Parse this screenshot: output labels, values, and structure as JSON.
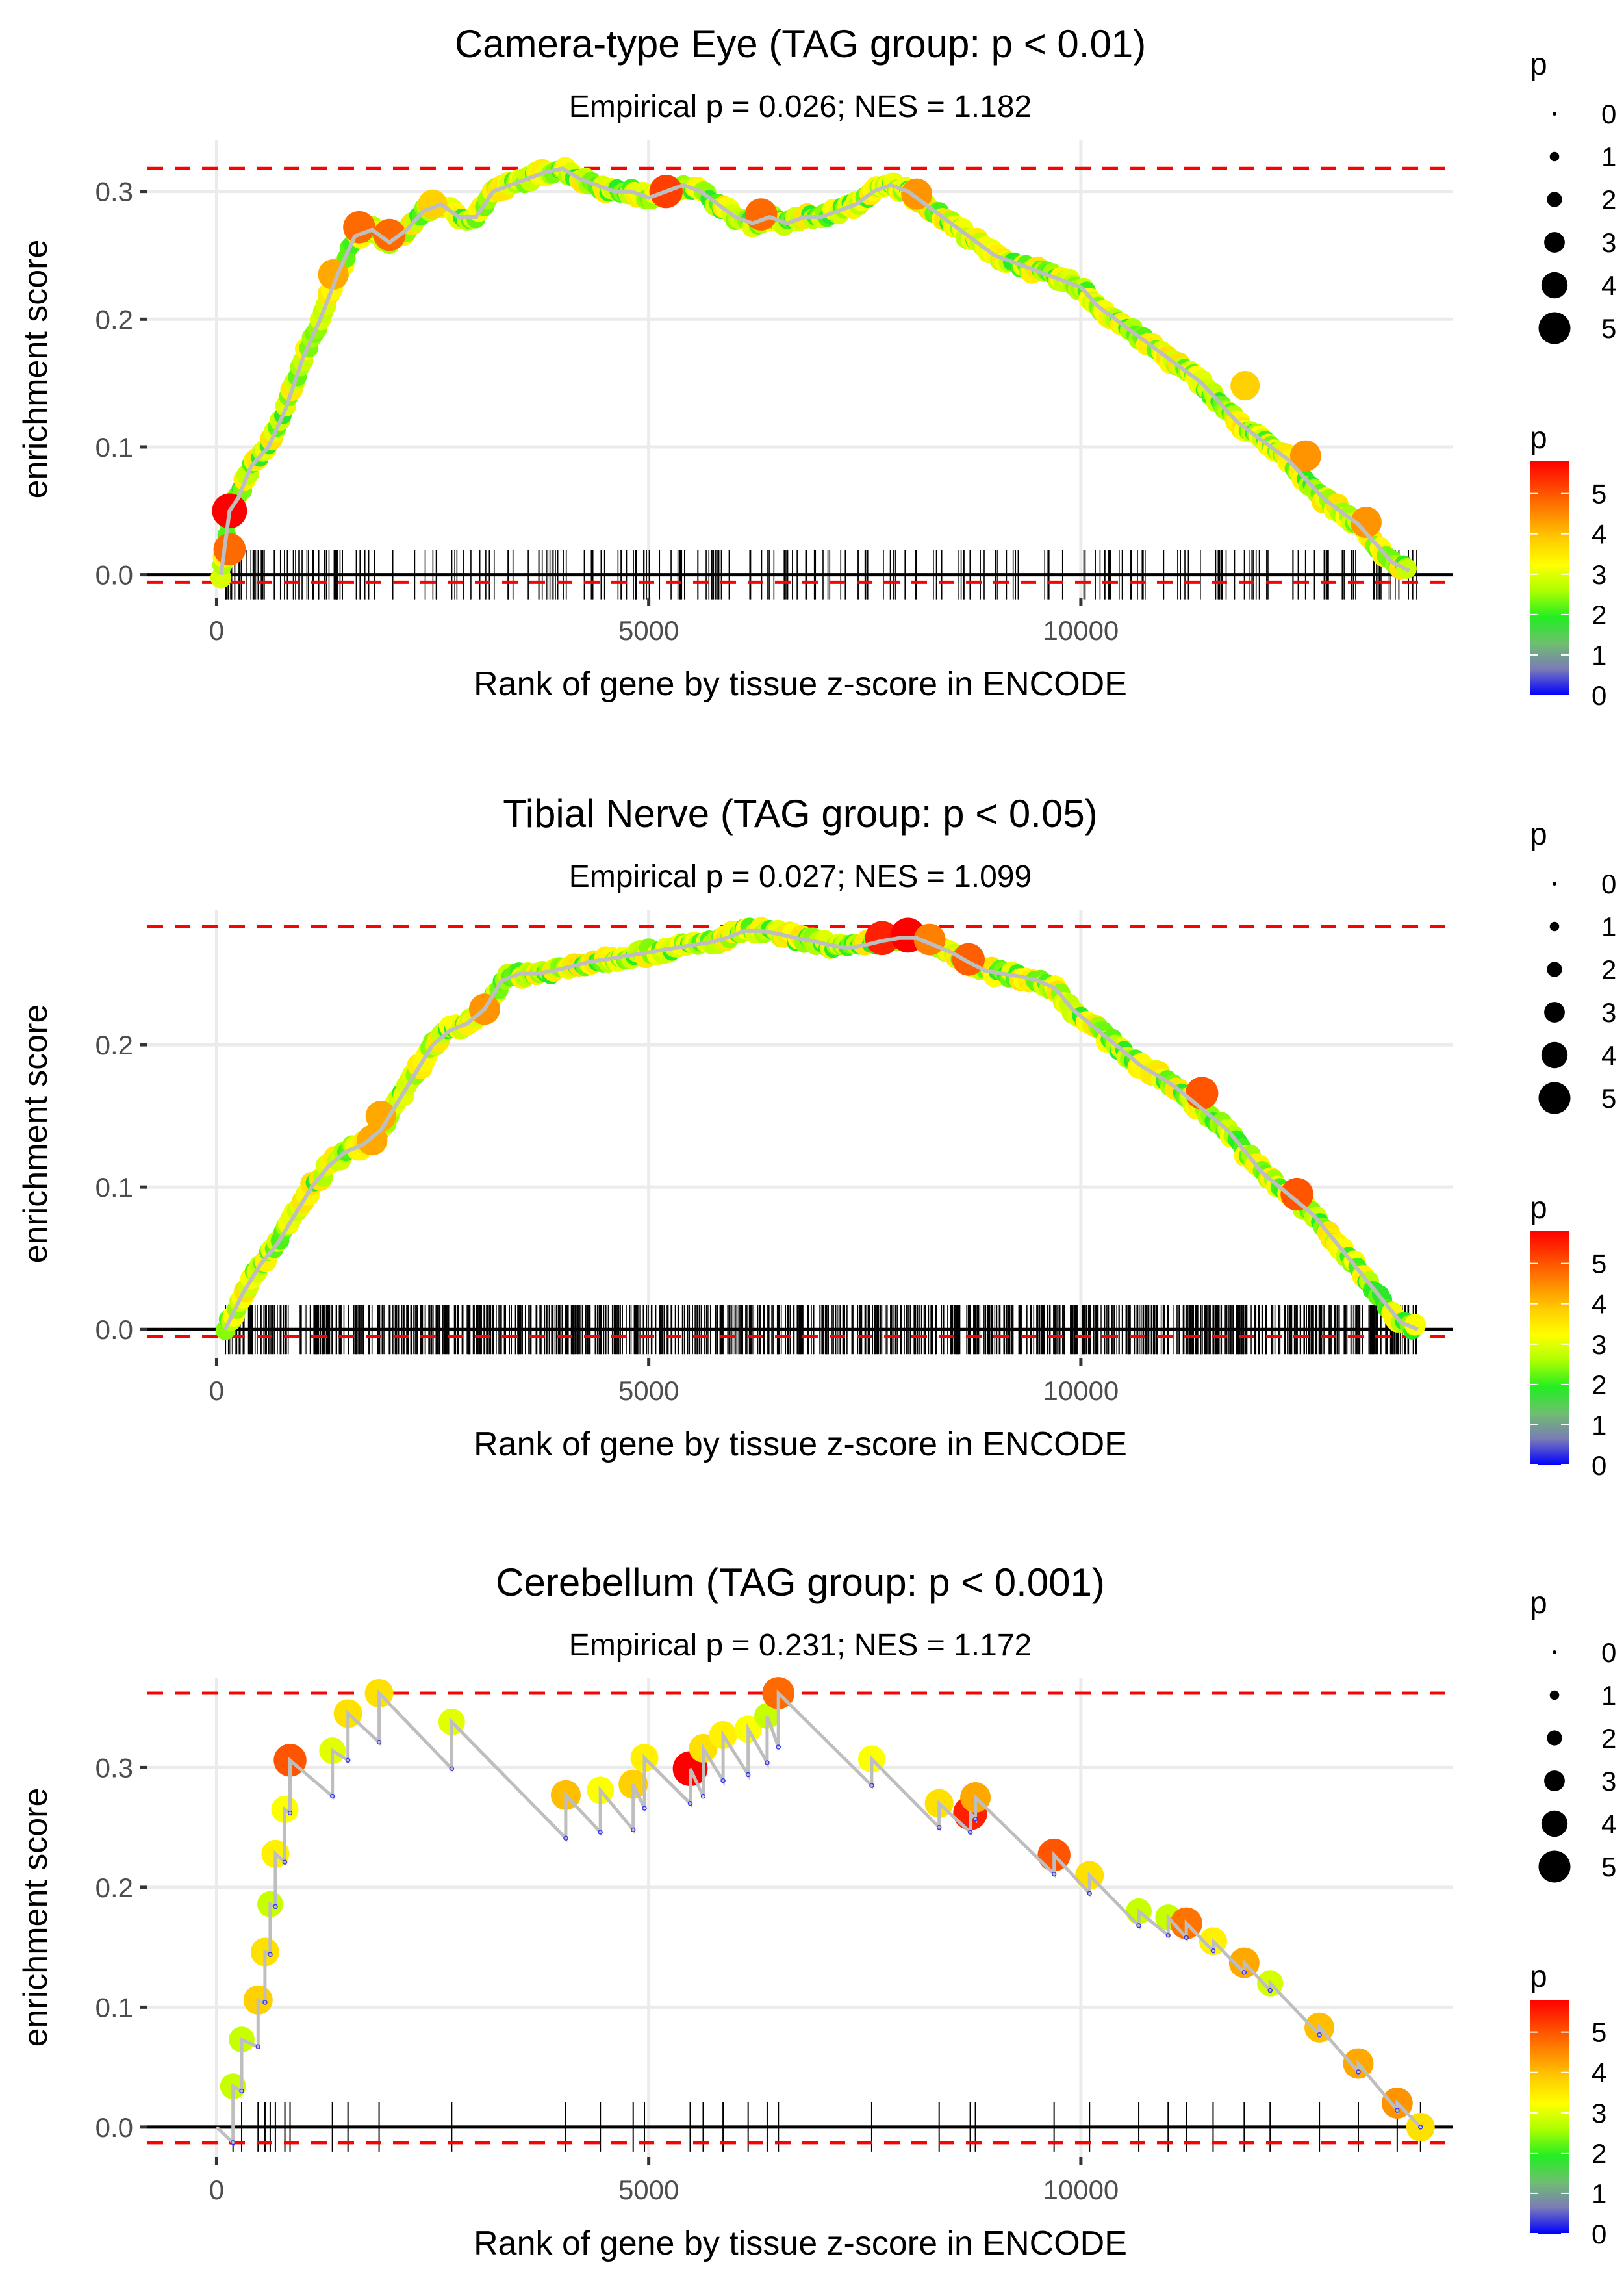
{
  "chart_data": [
    {
      "type": "line",
      "title": "Camera-type Eye (TAG group: p < 0.01)",
      "subtitle": "Empirical p = 0.026; NES = 1.182",
      "xlabel": "Rank of gene by tissue z-score in ENCODE",
      "ylabel": "enrichment score",
      "xlim": [
        -800,
        14300
      ],
      "ylim": [
        -0.018,
        0.34
      ],
      "x_ticks": [
        0,
        5000,
        10000
      ],
      "x_tick_labels": [
        "0",
        "5000",
        "10000"
      ],
      "y_ticks": [
        0.0,
        0.1,
        0.2,
        0.3
      ],
      "y_tick_labels": [
        "0.0",
        "0.1",
        "0.2",
        "0.3"
      ],
      "grid": true,
      "ref_lines": {
        "max": 0.318,
        "min": -0.006
      },
      "dense": true,
      "series": [
        {
          "name": "enrichment score",
          "x": [
            50,
            150,
            250,
            400,
            600,
            800,
            1000,
            1200,
            1400,
            1600,
            1800,
            2000,
            2200,
            2400,
            2600,
            2800,
            3000,
            3200,
            3400,
            3600,
            3800,
            4000,
            4200,
            4400,
            4600,
            4800,
            5000,
            5200,
            5400,
            5600,
            5800,
            6000,
            6200,
            6400,
            6600,
            6800,
            7000,
            7200,
            7400,
            7600,
            7800,
            8000,
            8200,
            8400,
            8600,
            8800,
            9000,
            9200,
            9400,
            9600,
            9800,
            10000,
            10200,
            10400,
            10600,
            10800,
            11000,
            11200,
            11400,
            11600,
            11800,
            12000,
            12200,
            12400,
            12600,
            12800,
            13000,
            13200,
            13400,
            13600,
            13800
          ],
          "y": [
            0.0,
            0.05,
            0.06,
            0.085,
            0.1,
            0.13,
            0.17,
            0.2,
            0.235,
            0.265,
            0.27,
            0.26,
            0.27,
            0.285,
            0.29,
            0.28,
            0.28,
            0.3,
            0.305,
            0.31,
            0.315,
            0.318,
            0.31,
            0.305,
            0.3,
            0.3,
            0.295,
            0.3,
            0.305,
            0.3,
            0.29,
            0.28,
            0.275,
            0.28,
            0.275,
            0.28,
            0.28,
            0.285,
            0.29,
            0.3,
            0.305,
            0.3,
            0.29,
            0.28,
            0.27,
            0.26,
            0.25,
            0.245,
            0.24,
            0.235,
            0.23,
            0.225,
            0.21,
            0.2,
            0.19,
            0.18,
            0.17,
            0.16,
            0.15,
            0.135,
            0.12,
            0.11,
            0.1,
            0.09,
            0.075,
            0.06,
            0.05,
            0.04,
            0.025,
            0.01,
            0.003
          ]
        }
      ],
      "highlight_points": [
        {
          "x": 150,
          "y": 0.05,
          "p": 5.8
        },
        {
          "x": 150,
          "y": 0.02,
          "p": 4.8
        },
        {
          "x": 1350,
          "y": 0.235,
          "p": 4.2
        },
        {
          "x": 1650,
          "y": 0.272,
          "p": 4.8
        },
        {
          "x": 2000,
          "y": 0.266,
          "p": 4.8
        },
        {
          "x": 2500,
          "y": 0.29,
          "p": 3.8
        },
        {
          "x": 5200,
          "y": 0.3,
          "p": 5.2
        },
        {
          "x": 6300,
          "y": 0.282,
          "p": 4.8
        },
        {
          "x": 8100,
          "y": 0.298,
          "p": 4.4
        },
        {
          "x": 11900,
          "y": 0.148,
          "p": 3.8
        },
        {
          "x": 12600,
          "y": 0.093,
          "p": 4.4
        },
        {
          "x": 13300,
          "y": 0.041,
          "p": 4.4
        }
      ],
      "rug_density": "medium"
    },
    {
      "type": "line",
      "title": "Tibial Nerve (TAG group: p < 0.05)",
      "subtitle": "Empirical p = 0.027; NES = 1.099",
      "xlabel": "Rank of gene by tissue z-score in ENCODE",
      "ylabel": "enrichment score",
      "xlim": [
        -800,
        14300
      ],
      "ylim": [
        -0.02,
        0.295
      ],
      "x_ticks": [
        0,
        5000,
        10000
      ],
      "x_tick_labels": [
        "0",
        "5000",
        "10000"
      ],
      "y_ticks": [
        0.0,
        0.1,
        0.2
      ],
      "y_tick_labels": [
        "0.0",
        "0.1",
        "0.2"
      ],
      "grid": true,
      "ref_lines": {
        "max": 0.283,
        "min": -0.005
      },
      "dense": true,
      "series": [
        {
          "name": "enrichment score",
          "x": [
            100,
            300,
            500,
            700,
            900,
            1100,
            1300,
            1500,
            1700,
            1900,
            2100,
            2300,
            2500,
            2700,
            2900,
            3100,
            3300,
            3500,
            3700,
            3900,
            4100,
            4300,
            4500,
            4700,
            4900,
            5100,
            5300,
            5500,
            5700,
            5900,
            6100,
            6300,
            6500,
            6700,
            6900,
            7100,
            7300,
            7500,
            7700,
            7900,
            8100,
            8300,
            8500,
            8700,
            8900,
            9100,
            9300,
            9500,
            9700,
            9900,
            10100,
            10300,
            10500,
            10700,
            10900,
            11100,
            11300,
            11500,
            11700,
            11900,
            12100,
            12300,
            12500,
            12700,
            12900,
            13100,
            13300,
            13500,
            13700,
            13900
          ],
          "y": [
            0.0,
            0.025,
            0.045,
            0.06,
            0.08,
            0.1,
            0.115,
            0.125,
            0.13,
            0.14,
            0.16,
            0.18,
            0.2,
            0.21,
            0.215,
            0.225,
            0.245,
            0.25,
            0.25,
            0.252,
            0.255,
            0.258,
            0.26,
            0.262,
            0.264,
            0.266,
            0.268,
            0.27,
            0.272,
            0.275,
            0.28,
            0.28,
            0.278,
            0.275,
            0.273,
            0.27,
            0.268,
            0.27,
            0.273,
            0.275,
            0.275,
            0.27,
            0.265,
            0.258,
            0.252,
            0.25,
            0.248,
            0.245,
            0.24,
            0.225,
            0.215,
            0.205,
            0.195,
            0.185,
            0.178,
            0.17,
            0.16,
            0.15,
            0.14,
            0.125,
            0.11,
            0.1,
            0.09,
            0.08,
            0.065,
            0.05,
            0.035,
            0.02,
            0.005,
            0.0
          ]
        }
      ],
      "highlight_points": [
        {
          "x": 1800,
          "y": 0.133,
          "p": 4.2
        },
        {
          "x": 1900,
          "y": 0.15,
          "p": 4.2
        },
        {
          "x": 3100,
          "y": 0.225,
          "p": 4.4
        },
        {
          "x": 7700,
          "y": 0.275,
          "p": 5.5
        },
        {
          "x": 8000,
          "y": 0.277,
          "p": 5.8
        },
        {
          "x": 8250,
          "y": 0.274,
          "p": 4.6
        },
        {
          "x": 8700,
          "y": 0.26,
          "p": 4.9
        },
        {
          "x": 11400,
          "y": 0.166,
          "p": 5.0
        },
        {
          "x": 12500,
          "y": 0.095,
          "p": 5.0
        }
      ],
      "rug_density": "high"
    },
    {
      "type": "line",
      "title": "Cerebellum (TAG group: p < 0.001)",
      "subtitle": "Empirical p = 0.231; NES = 1.172",
      "xlabel": "Rank of gene by tissue z-score in ENCODE",
      "ylabel": "enrichment score",
      "xlim": [
        -800,
        14300
      ],
      "ylim": [
        -0.025,
        0.375
      ],
      "x_ticks": [
        0,
        5000,
        10000
      ],
      "x_tick_labels": [
        "0",
        "5000",
        "10000"
      ],
      "y_ticks": [
        0.0,
        0.1,
        0.2,
        0.3
      ],
      "y_tick_labels": [
        "0.0",
        "0.1",
        "0.2",
        "0.3"
      ],
      "grid": true,
      "ref_lines": {
        "max": 0.362,
        "min": -0.013
      },
      "dense": false,
      "hits": [
        {
          "x": 190,
          "top": 0.034,
          "bottom": -0.013,
          "p": 2.8
        },
        {
          "x": 290,
          "top": 0.073,
          "bottom": 0.03,
          "p": 2.8
        },
        {
          "x": 480,
          "top": 0.106,
          "bottom": 0.067,
          "p": 3.8
        },
        {
          "x": 560,
          "top": 0.146,
          "bottom": 0.104,
          "p": 3.6
        },
        {
          "x": 620,
          "top": 0.186,
          "bottom": 0.144,
          "p": 2.8
        },
        {
          "x": 680,
          "top": 0.228,
          "bottom": 0.184,
          "p": 3.4
        },
        {
          "x": 790,
          "top": 0.265,
          "bottom": 0.221,
          "p": 3.2
        },
        {
          "x": 850,
          "top": 0.306,
          "bottom": 0.262,
          "p": 5.0
        },
        {
          "x": 1340,
          "top": 0.314,
          "bottom": 0.276,
          "p": 3.0
        },
        {
          "x": 1520,
          "top": 0.345,
          "bottom": 0.306,
          "p": 3.6
        },
        {
          "x": 1880,
          "top": 0.362,
          "bottom": 0.321,
          "p": 3.6
        },
        {
          "x": 2720,
          "top": 0.338,
          "bottom": 0.299,
          "p": 3.0
        },
        {
          "x": 4040,
          "top": 0.277,
          "bottom": 0.241,
          "p": 4.0
        },
        {
          "x": 4440,
          "top": 0.281,
          "bottom": 0.246,
          "p": 3.2
        },
        {
          "x": 4820,
          "top": 0.286,
          "bottom": 0.248,
          "p": 3.8
        },
        {
          "x": 4950,
          "top": 0.308,
          "bottom": 0.266,
          "p": 3.4
        },
        {
          "x": 5480,
          "top": 0.299,
          "bottom": 0.27,
          "p": 5.8
        },
        {
          "x": 5630,
          "top": 0.316,
          "bottom": 0.276,
          "p": 3.6
        },
        {
          "x": 5860,
          "top": 0.327,
          "bottom": 0.289,
          "p": 3.4
        },
        {
          "x": 6150,
          "top": 0.332,
          "bottom": 0.294,
          "p": 3.2
        },
        {
          "x": 6370,
          "top": 0.343,
          "bottom": 0.304,
          "p": 2.8
        },
        {
          "x": 6500,
          "top": 0.362,
          "bottom": 0.317,
          "p": 4.8
        },
        {
          "x": 7580,
          "top": 0.307,
          "bottom": 0.285,
          "p": 3.2
        },
        {
          "x": 8360,
          "top": 0.27,
          "bottom": 0.25,
          "p": 3.6
        },
        {
          "x": 8720,
          "top": 0.262,
          "bottom": 0.246,
          "p": 5.5
        },
        {
          "x": 8780,
          "top": 0.275,
          "bottom": 0.257,
          "p": 4.2
        },
        {
          "x": 9690,
          "top": 0.227,
          "bottom": 0.211,
          "p": 5.0
        },
        {
          "x": 10100,
          "top": 0.21,
          "bottom": 0.195,
          "p": 3.6
        },
        {
          "x": 10670,
          "top": 0.18,
          "bottom": 0.168,
          "p": 2.8
        },
        {
          "x": 11010,
          "top": 0.175,
          "bottom": 0.16,
          "p": 2.8
        },
        {
          "x": 11220,
          "top": 0.17,
          "bottom": 0.158,
          "p": 4.7
        },
        {
          "x": 11530,
          "top": 0.155,
          "bottom": 0.147,
          "p": 3.4
        },
        {
          "x": 11890,
          "top": 0.137,
          "bottom": 0.129,
          "p": 4.2
        },
        {
          "x": 12190,
          "top": 0.12,
          "bottom": 0.114,
          "p": 2.9
        },
        {
          "x": 12760,
          "top": 0.083,
          "bottom": 0.077,
          "p": 4.0
        },
        {
          "x": 13210,
          "top": 0.053,
          "bottom": 0.046,
          "p": 4.2
        },
        {
          "x": 13660,
          "top": 0.02,
          "bottom": 0.014,
          "p": 4.4
        },
        {
          "x": 13930,
          "top": 0.0,
          "bottom": 0.0,
          "p": 3.6
        }
      ]
    }
  ],
  "legends": {
    "size_legend": {
      "title": "p",
      "values": [
        "0",
        "1",
        "2",
        "3",
        "4",
        "5"
      ]
    },
    "color_legend": {
      "title": "p",
      "labels": [
        "5",
        "4",
        "3",
        "2",
        "1",
        "0"
      ],
      "range": [
        0,
        5.8
      ],
      "colors": [
        "#0000ff",
        "#7a7ab8",
        "#6fbf6f",
        "#22ee22",
        "#aaff00",
        "#ffff00",
        "#ffcc00",
        "#ff8800",
        "#ff4400",
        "#ff0000"
      ]
    }
  },
  "colors": {
    "line": "#bebebe",
    "ref_line": "#ff0000",
    "zero_line": "#000000",
    "grid": "#ebebeb",
    "rug": "#000000"
  }
}
